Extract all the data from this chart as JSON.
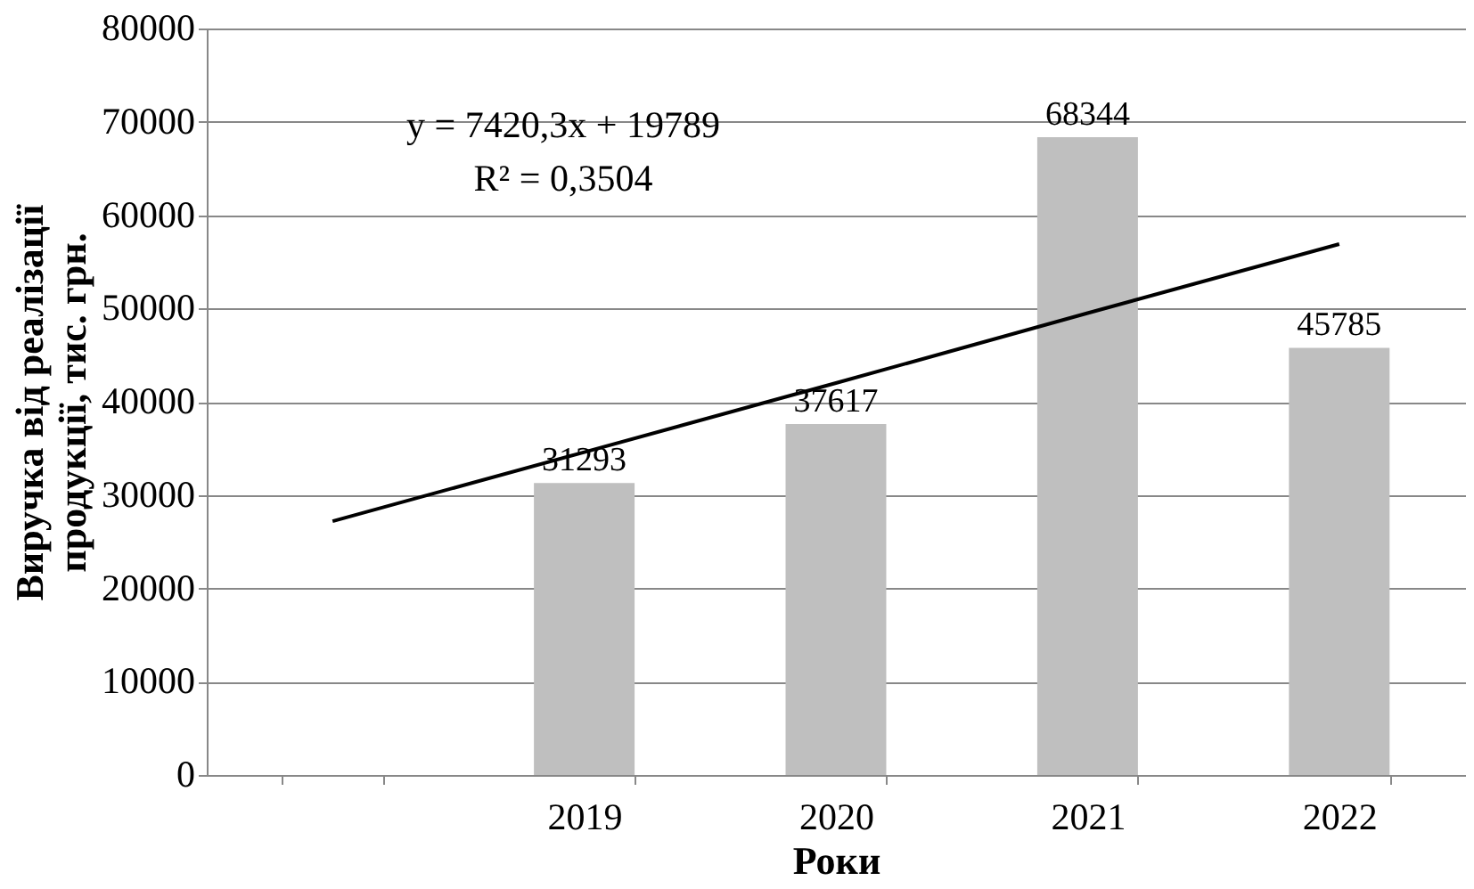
{
  "chart_data": {
    "type": "bar",
    "categories": [
      null,
      "2019",
      "2020",
      "2021",
      "2022"
    ],
    "series": [
      {
        "color": "#bfbfbf",
        "values": [
          null,
          31293,
          37617,
          68344,
          45785
        ],
        "value_labels": [
          null,
          "31293",
          "37617",
          "68344",
          "45785"
        ]
      },
      {
        "type": "line",
        "color": "#000000",
        "values": [
          27200,
          34600,
          42000,
          49500,
          56900
        ]
      }
    ],
    "xlabel": "Роки",
    "ylabel": "Виручка від реалізації\nпродукції, тис. грн.",
    "ylim": [
      0,
      80000
    ],
    "yticks": [
      0,
      10000,
      20000,
      30000,
      40000,
      50000,
      60000,
      70000,
      80000
    ],
    "grid": "y",
    "annotations": [
      "y = 7420,3x + 19789",
      "R² = 0,3504"
    ]
  }
}
